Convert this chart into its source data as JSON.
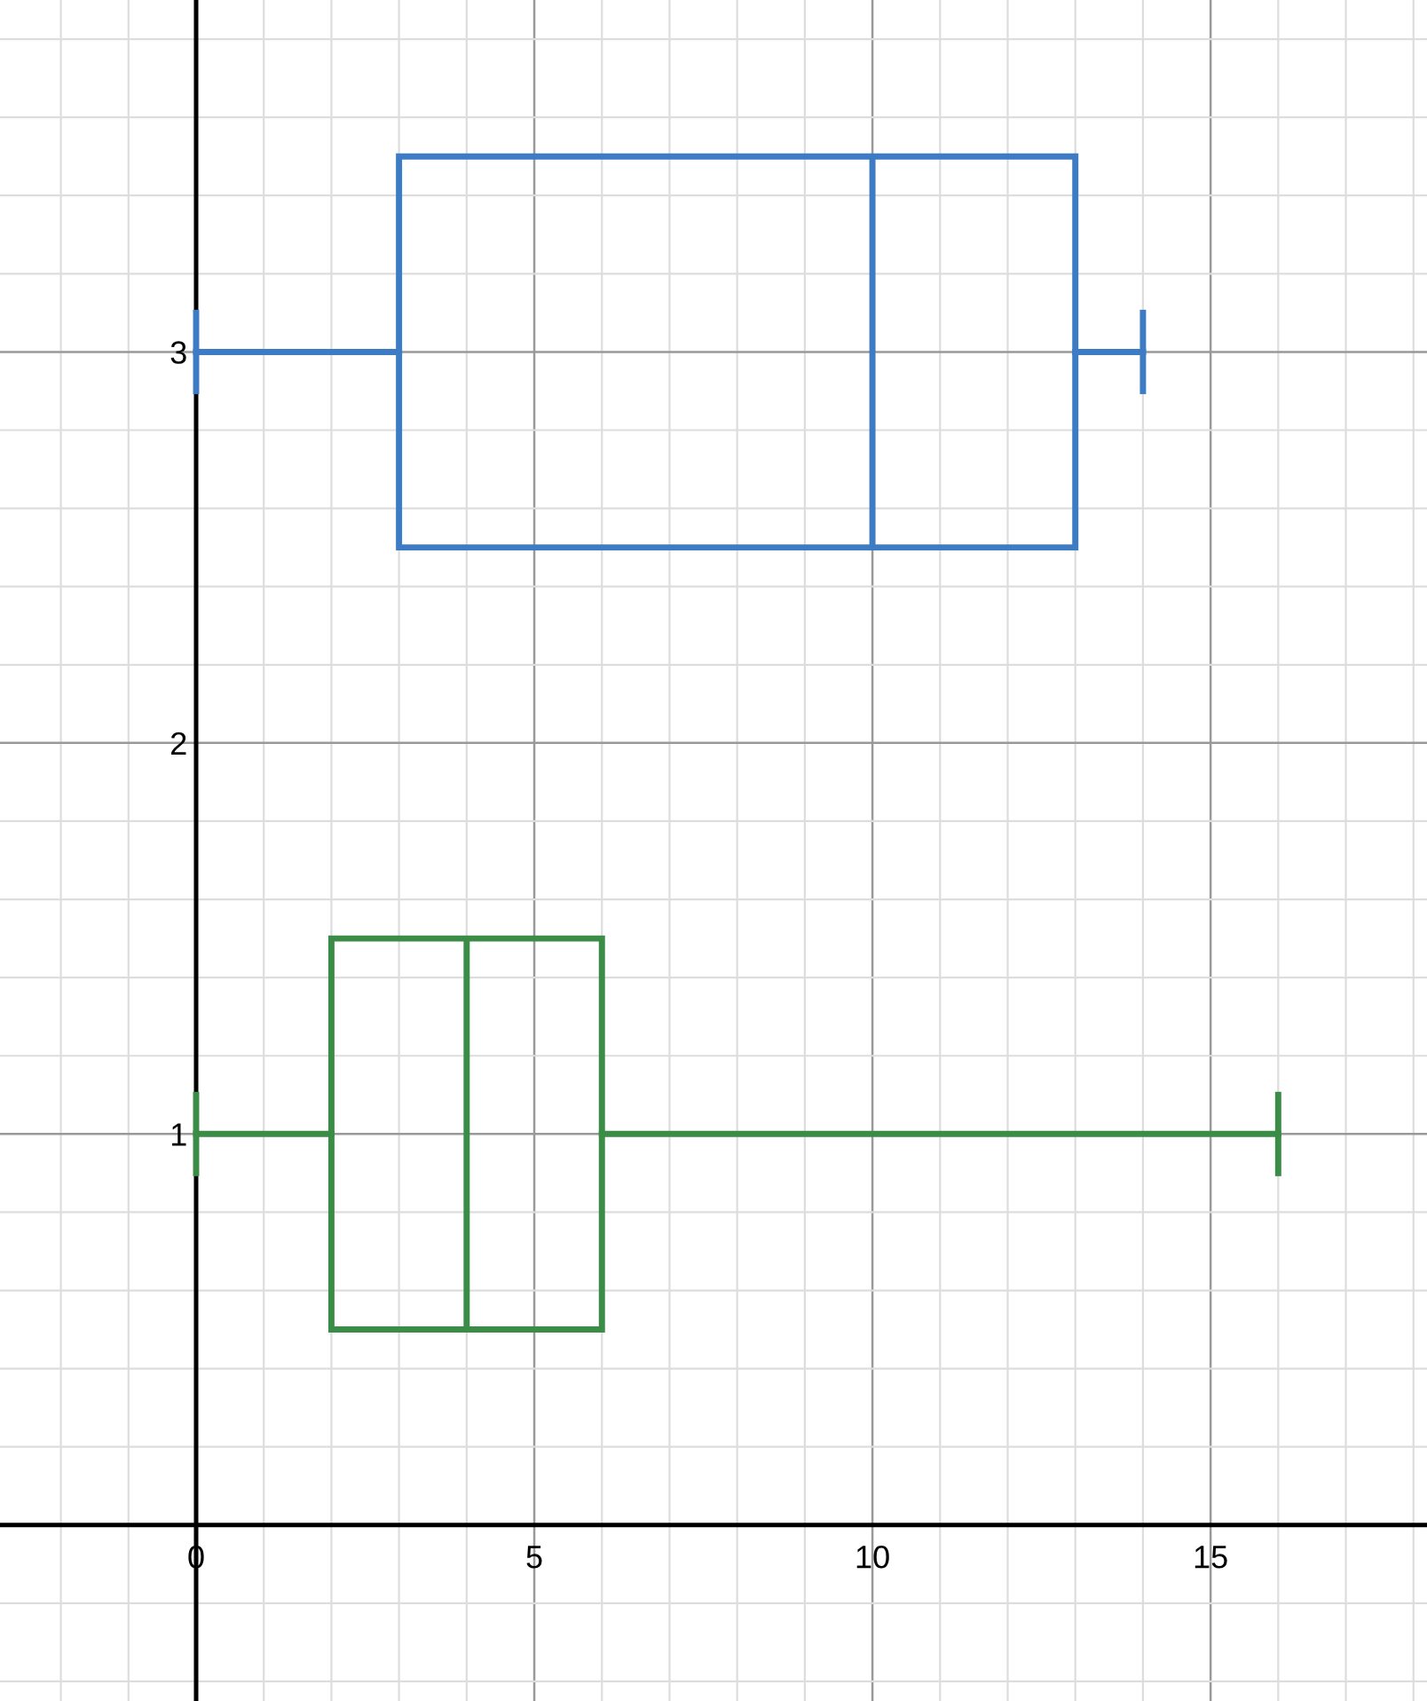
{
  "chart_data": {
    "type": "box",
    "orientation": "horizontal",
    "categories": [
      "3",
      "2",
      "1"
    ],
    "boxes": [
      {
        "low": 0,
        "q1": 3,
        "median": 10,
        "q3": 13,
        "high": 14
      },
      null,
      {
        "low": 0,
        "q1": 2,
        "median": 4,
        "q3": 6,
        "high": 16
      }
    ],
    "colors": [
      "#3d7cc4",
      null,
      "#3a8c46"
    ],
    "xlim": [
      -2.9,
      18.2
    ],
    "xticks": [
      0,
      5,
      10,
      15
    ],
    "grid": true
  }
}
